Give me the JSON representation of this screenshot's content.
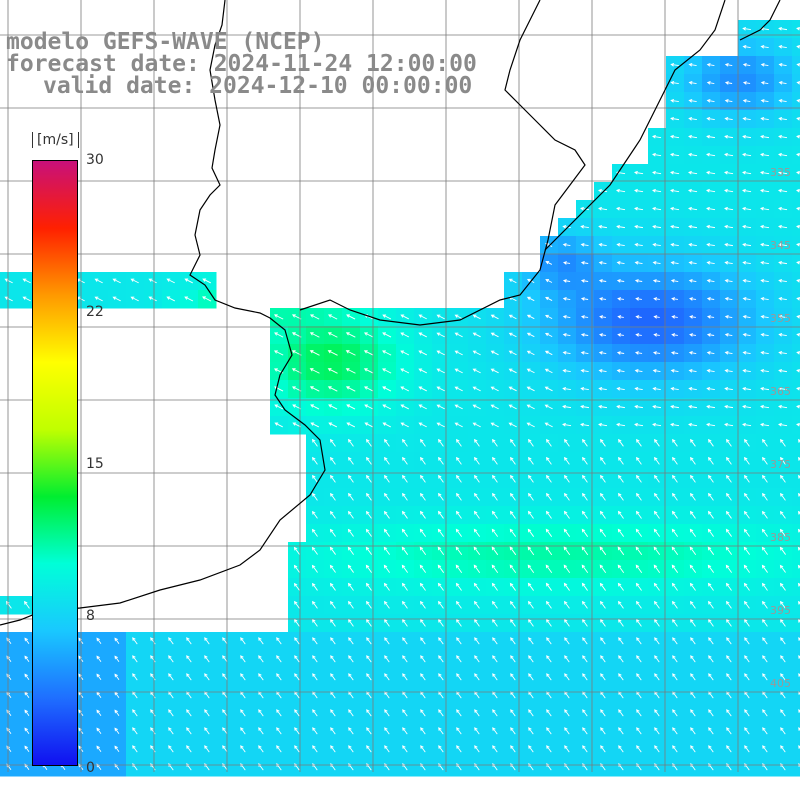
{
  "title": {
    "line1": "modelo GEFS-WAVE (NCEP)",
    "line2": "forecast date: 2024-11-24 12:00:00",
    "line3": "valid date: 2024-12-10 00:00:00"
  },
  "colorbar": {
    "unit": "[m/s]",
    "ticks": [
      "30",
      "22",
      "15",
      "8",
      "0"
    ],
    "min": 0,
    "max": 30,
    "colors": [
      "#1010f0",
      "#1f6fff",
      "#19c8ff",
      "#00ffd8",
      "#00ee30",
      "#c0ff00",
      "#ffff00",
      "#ff9900",
      "#ff2000",
      "#c8107a"
    ]
  },
  "colors": {
    "grid": "#7a7a7a",
    "coast": "#000000",
    "arrow": "#ffffff",
    "land": "#ffffff"
  },
  "grid_labels_right": [
    "335",
    "345",
    "355",
    "365",
    "375",
    "385",
    "395",
    "405"
  ]
}
